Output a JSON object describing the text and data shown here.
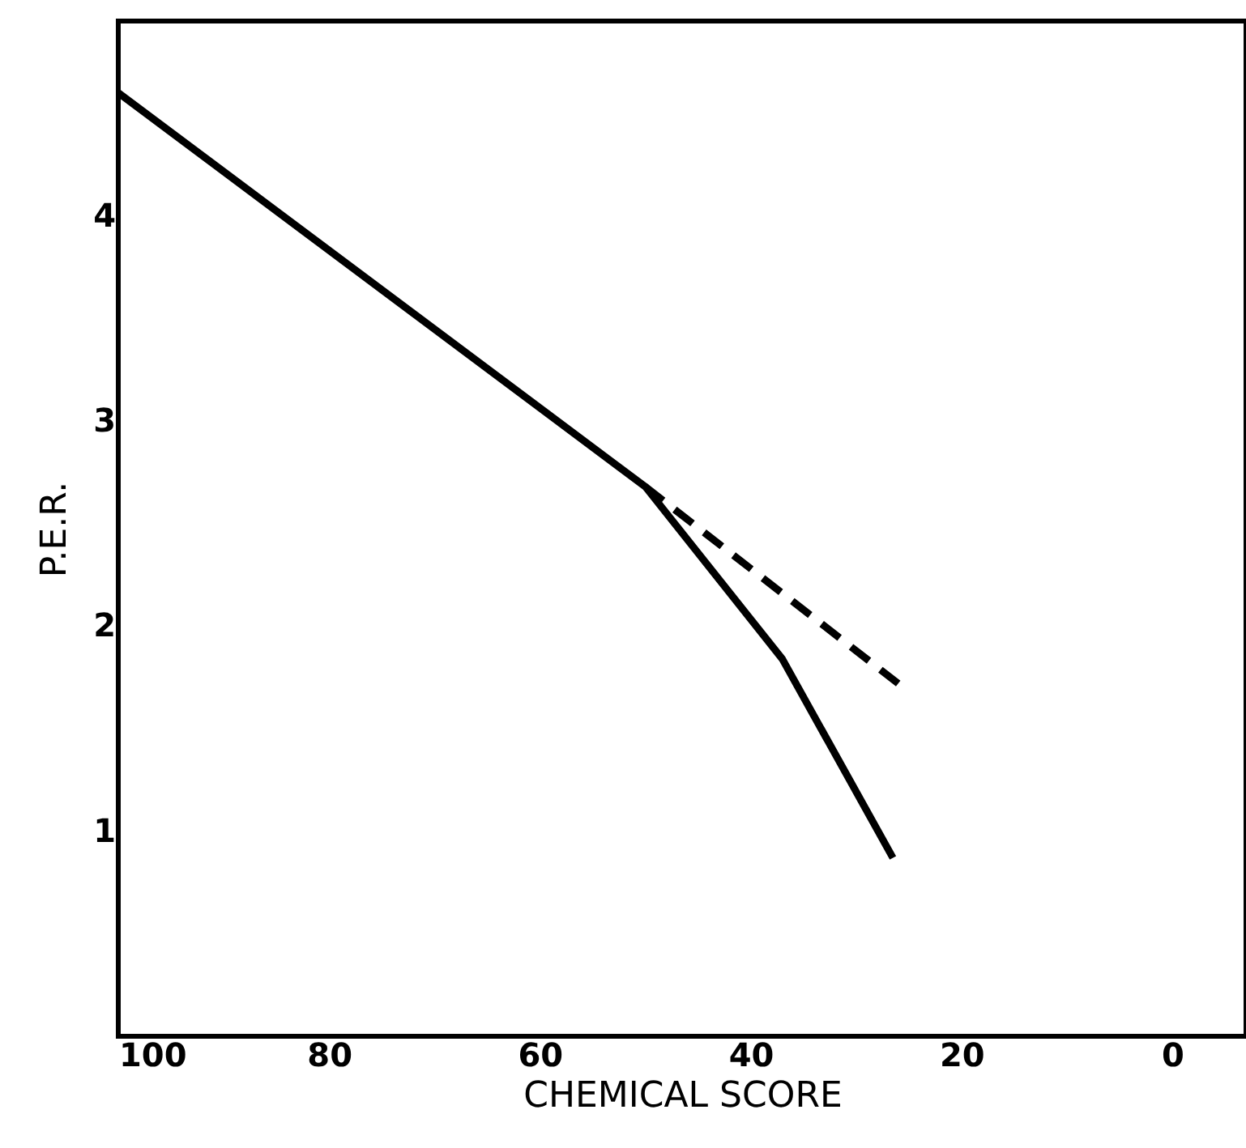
{
  "chart_data": {
    "type": "line",
    "xlabel": "CHEMICAL SCORE",
    "ylabel": "P.E.R.",
    "xlim": [
      100,
      -7
    ],
    "xticks": [
      100,
      80,
      60,
      40,
      20,
      0
    ],
    "ylim": [
      0,
      4.95
    ],
    "yticks": [
      1,
      2,
      3,
      4
    ],
    "grid": false,
    "marker": "none",
    "series": [
      {
        "color": "#000000",
        "line_style": "solid",
        "x": [
          100,
          50,
          37,
          26.5
        ],
        "values": [
          4.6,
          2.68,
          1.84,
          0.87
        ]
      },
      {
        "color": "#000000",
        "line_style": "dashed",
        "x": [
          50,
          26
        ],
        "values": [
          2.68,
          1.72
        ]
      }
    ]
  }
}
